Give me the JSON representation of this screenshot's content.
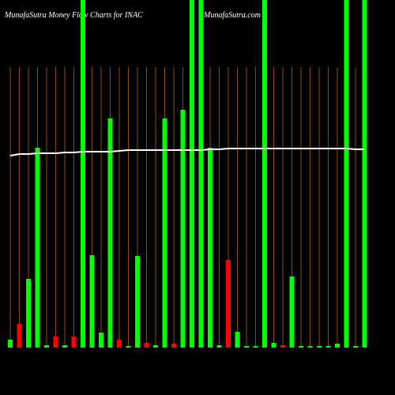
{
  "chart_data": {
    "type": "bar",
    "title": "MunafaSutra  Money Flow  Charts for INAC",
    "subtitle": "MunafaSutra.com",
    "categories": [
      null,
      null,
      null,
      null,
      null,
      null,
      null,
      null,
      null,
      null,
      null,
      null,
      null,
      null,
      null,
      null,
      null,
      null,
      null,
      null,
      null,
      null,
      null,
      null,
      null,
      null,
      null,
      null,
      null,
      null,
      null,
      null,
      null,
      null,
      null,
      null,
      null,
      null,
      null,
      null
    ],
    "values": [
      10,
      30,
      87,
      253,
      3,
      14,
      3,
      14,
      440,
      117,
      19,
      290,
      10,
      2,
      116,
      6,
      3,
      290,
      5,
      301,
      440,
      440,
      253,
      3,
      111,
      20,
      2,
      2,
      440,
      6,
      3,
      90,
      2,
      2,
      2,
      2,
      5,
      440,
      2,
      440
    ],
    "bar_colors": [
      "#00ff00",
      "#ff0000",
      "#00ff00",
      "#00ff00",
      "#00ff00",
      "#ff0000",
      "#00ff00",
      "#ff0000",
      "#00ff00",
      "#00ff00",
      "#00ff00",
      "#00ff00",
      "#ff0000",
      "#00ff00",
      "#00ff00",
      "#ff0000",
      "#00ff00",
      "#00ff00",
      "#ff0000",
      "#00ff00",
      "#00ff00",
      "#00ff00",
      "#00ff00",
      "#00ff00",
      "#ff0000",
      "#00ff00",
      "#00ff00",
      "#00ff00",
      "#00ff00",
      "#00ff00",
      "#ff0000",
      "#00ff00",
      "#00ff00",
      "#00ff00",
      "#00ff00",
      "#00ff00",
      "#00ff00",
      "#00ff00",
      "#00ff00",
      "#00ff00"
    ],
    "line_values": [
      243,
      245,
      245,
      246,
      246,
      246,
      247,
      247,
      248,
      248,
      248,
      248,
      249,
      250,
      250,
      250,
      250,
      250,
      250,
      250,
      250,
      250,
      251,
      251,
      252,
      252,
      252,
      252,
      252,
      252,
      252,
      252,
      252,
      252,
      252,
      252,
      252,
      252,
      251,
      251
    ],
    "line_color": "#ffffff",
    "ylim": [
      0,
      440
    ]
  }
}
